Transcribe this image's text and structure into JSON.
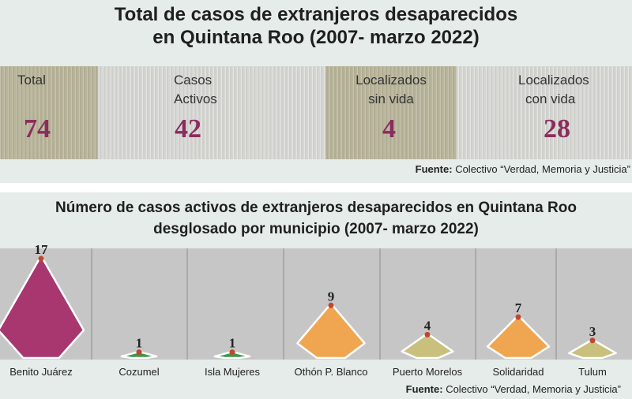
{
  "header": {
    "title_line1": "Total de casos de extranjeros desaparecidos",
    "title_line2": "en Quintana Roo (2007- marzo 2022)"
  },
  "stats": [
    {
      "label_line1": "Total",
      "label_line2": "",
      "value": "74"
    },
    {
      "label_line1": "Casos",
      "label_line2": "Activos",
      "value": "42"
    },
    {
      "label_line1": "Localizados",
      "label_line2": "sin vida",
      "value": "4"
    },
    {
      "label_line1": "Localizados",
      "label_line2": "con vida",
      "value": "28"
    }
  ],
  "source_top": {
    "key": "Fuente:",
    "text": " Colectivo “Verdad, Memoria y Justicia”"
  },
  "source_bottom": {
    "key": "Fuente:",
    "text": " Colectivo “Verdad, Memoria y Justicia”"
  },
  "colors": {
    "dark_block": "#bab69c",
    "value_text": "#8b2c5e",
    "peak_marker": "#c0462e"
  },
  "chart_data": {
    "type": "bar",
    "title": "Número de casos activos de extranjeros desaparecidos en Quintana Roo desglosado por municipio (2007- marzo 2022)",
    "title_line1": "Número de casos activos de extranjeros desaparecidos en Quintana Roo",
    "title_line2": "desglosado por municipio (2007- marzo 2022)",
    "categories": [
      "Benito Juárez",
      "Cozumel",
      "Isla Mujeres",
      "Othón P. Blanco",
      "Puerto Morelos",
      "Solidaridad",
      "Tulum"
    ],
    "values": [
      17,
      1,
      1,
      9,
      4,
      7,
      3
    ],
    "colors": [
      "#a8376f",
      "#3a9a49",
      "#3a9a49",
      "#f0a650",
      "#c9c07e",
      "#f0a650",
      "#c9c07e"
    ],
    "xlabel": "",
    "ylabel": "",
    "ylim": [
      0,
      17
    ],
    "grid": false,
    "legend": "none"
  }
}
